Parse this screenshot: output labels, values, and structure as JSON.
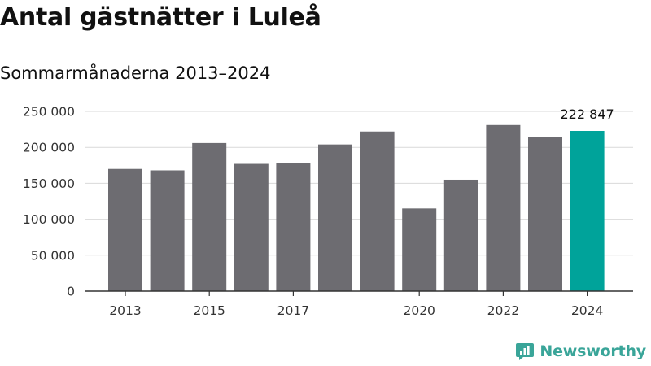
{
  "header": {
    "title": "Antal gästnätter i Luleå",
    "subtitle": "Sommarmånaderna 2013–2024"
  },
  "brand": {
    "name": "Newsworthy",
    "icon": "newsworthy-logo-icon",
    "color": "#3aa599"
  },
  "colors": {
    "bar": "#6d6c71",
    "highlight": "#00a39a",
    "grid": "#d9d9d9",
    "axis": "#333333"
  },
  "chart_data": {
    "type": "bar",
    "categories": [
      "2013",
      "2014",
      "2015",
      "2016",
      "2017",
      "2018",
      "2019",
      "2020",
      "2021",
      "2022",
      "2023",
      "2024"
    ],
    "x_tick_labels": [
      "2013",
      "",
      "2015",
      "",
      "2017",
      "",
      "",
      "2020",
      "",
      "2022",
      "",
      "2024"
    ],
    "values": [
      170000,
      168000,
      206000,
      177000,
      178000,
      204000,
      222000,
      115000,
      155000,
      231000,
      214000,
      222847
    ],
    "highlight_index": 11,
    "data_labels": [
      {
        "index": 11,
        "text": "222 847"
      }
    ],
    "ylim": [
      0,
      250000
    ],
    "yticks": [
      0,
      50000,
      100000,
      150000,
      200000,
      250000
    ],
    "ytick_labels": [
      "0",
      "50 000",
      "100 000",
      "150 000",
      "200 000",
      "250 000"
    ],
    "grid": true,
    "legend": "none"
  }
}
